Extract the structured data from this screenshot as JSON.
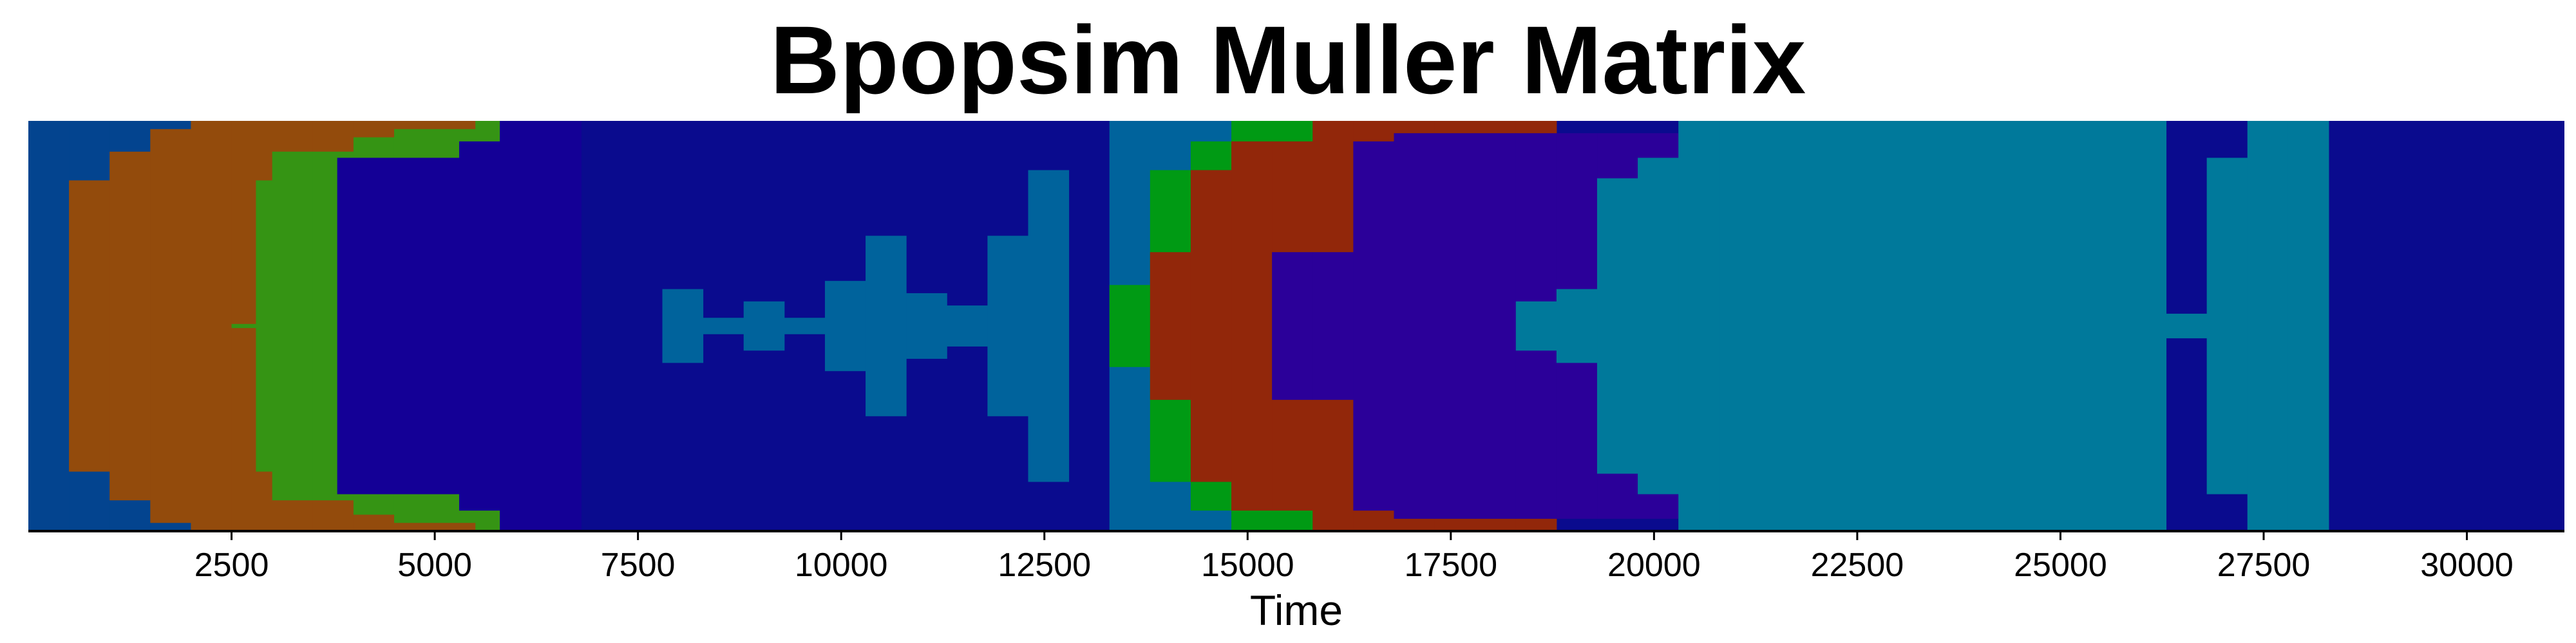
{
  "chart_data": {
    "type": "area",
    "title": "Bpopsim Muller Matrix",
    "xlabel": "Time",
    "ylabel": "",
    "xlim": [
      0,
      31200
    ],
    "ylim": [
      0,
      1
    ],
    "x_ticks": [
      2500,
      5000,
      7500,
      10000,
      12500,
      15000,
      17500,
      20000,
      22500,
      25000,
      27500,
      30000
    ],
    "x_tick_labels": [
      "2500",
      "5000",
      "7500",
      "10000",
      "12500",
      "15000",
      "17500",
      "20000",
      "22500",
      "25000",
      "27500",
      "30000"
    ],
    "background_color": "#0a0b8e",
    "legend": "none",
    "grid": false,
    "series": [
      {
        "color": "#03448f",
        "steps": [
          [
            0,
            0.5
          ],
          [
            500,
            0.5
          ],
          [
            1000,
            0.5
          ],
          [
            1500,
            0.5
          ],
          [
            2000,
            0.5
          ]
        ]
      },
      {
        "color": "#934b0c",
        "steps": [
          [
            500,
            0.355
          ],
          [
            1000,
            0.425
          ],
          [
            1500,
            0.48
          ],
          [
            2000,
            0.5
          ],
          [
            2500,
            0.5
          ],
          [
            3000,
            0.5
          ],
          [
            3500,
            0.5
          ],
          [
            4000,
            0.5
          ],
          [
            4500,
            0.5
          ],
          [
            5000,
            0.5
          ],
          [
            5500,
            0.5
          ],
          [
            6000,
            0.5
          ]
        ]
      },
      {
        "color": "#359414",
        "steps": [
          [
            2500,
            0.005
          ],
          [
            2800,
            0.355
          ],
          [
            3000,
            0.425
          ],
          [
            3500,
            0.425
          ],
          [
            4000,
            0.46
          ],
          [
            4500,
            0.48
          ],
          [
            5000,
            0.48
          ],
          [
            5500,
            0.5
          ],
          [
            6000,
            0.5
          ]
        ]
      },
      {
        "color": "#140096",
        "steps": [
          [
            3800,
            0.41
          ],
          [
            4300,
            0.41
          ],
          [
            4800,
            0.41
          ],
          [
            5300,
            0.45
          ],
          [
            5800,
            0.5
          ],
          [
            6300,
            0.5
          ]
        ]
      },
      {
        "color": "#00639c",
        "steps": [
          [
            6300,
            0.0
          ],
          [
            7800,
            0.09
          ],
          [
            8300,
            0.02
          ],
          [
            8800,
            0.06
          ],
          [
            9300,
            0.02
          ],
          [
            9800,
            0.11
          ],
          [
            10300,
            0.22
          ],
          [
            10800,
            0.08
          ],
          [
            11300,
            0.05
          ],
          [
            11800,
            0.22
          ],
          [
            12300,
            0.38
          ],
          [
            12800,
            0.0
          ],
          [
            13300,
            0.5
          ],
          [
            13800,
            0.5
          ],
          [
            14300,
            0.5
          ],
          [
            14800,
            0.5
          ],
          [
            15300,
            0.5
          ],
          [
            15800,
            0.5
          ]
        ]
      },
      {
        "color": "#009a14",
        "steps": [
          [
            13300,
            0.1
          ],
          [
            13800,
            0.38
          ],
          [
            14300,
            0.45
          ],
          [
            14800,
            0.5
          ],
          [
            15300,
            0.5
          ],
          [
            15800,
            0.5
          ]
        ]
      },
      {
        "color": "#92270a",
        "steps": [
          [
            13800,
            0.18
          ],
          [
            14300,
            0.38
          ],
          [
            14800,
            0.45
          ],
          [
            15300,
            0.45
          ],
          [
            15800,
            0.5
          ],
          [
            16300,
            0.5
          ],
          [
            17300,
            0.5
          ],
          [
            17800,
            0.5
          ],
          [
            18300,
            0.5
          ]
        ]
      },
      {
        "color": "#2b0099",
        "steps": [
          [
            15300,
            0.18
          ],
          [
            15800,
            0.18
          ],
          [
            16300,
            0.45
          ],
          [
            16800,
            0.47
          ],
          [
            17300,
            0.47
          ],
          [
            17800,
            0.47
          ],
          [
            18300,
            0.47
          ],
          [
            18800,
            0.47
          ],
          [
            19300,
            0.47
          ],
          [
            19800,
            0.47
          ],
          [
            20300,
            0.47
          ]
        ]
      },
      {
        "color": "#00799b",
        "steps": [
          [
            17800,
            0.0
          ],
          [
            18300,
            0.06
          ],
          [
            18800,
            0.09
          ],
          [
            19300,
            0.36
          ],
          [
            19800,
            0.41
          ],
          [
            20300,
            0.5
          ],
          [
            20800,
            0.5
          ],
          [
            25300,
            0.5
          ],
          [
            26300,
            0.03
          ],
          [
            26800,
            0.41
          ],
          [
            27300,
            0.5
          ],
          [
            27800,
            0.5
          ]
        ]
      },
      {
        "color": "#0a0b8e",
        "steps": [
          [
            26300,
            0.0
          ],
          [
            26800,
            0.0
          ],
          [
            27300,
            0.0
          ],
          [
            27800,
            0.0
          ],
          [
            28300,
            0.0
          ],
          [
            31200,
            0.0
          ]
        ]
      }
    ]
  }
}
